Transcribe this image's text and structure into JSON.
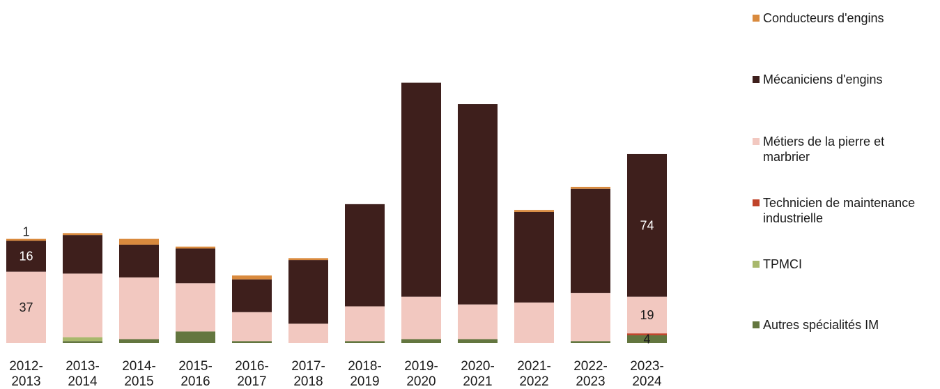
{
  "chart_data": {
    "type": "bar",
    "stacked": true,
    "title": "",
    "xlabel": "",
    "ylabel": "",
    "ylim": [
      0,
      175
    ],
    "grid": false,
    "legend_position": "right",
    "categories": [
      [
        "2012-",
        "2013"
      ],
      [
        "2013-",
        "2014"
      ],
      [
        "2014-",
        "2015"
      ],
      [
        "2015-",
        "2016"
      ],
      [
        "2016-",
        "2017"
      ],
      [
        "2017-",
        "2018"
      ],
      [
        "2018-",
        "2019"
      ],
      [
        "2019-",
        "2020"
      ],
      [
        "2020-",
        "2021"
      ],
      [
        "2021-",
        "2022"
      ],
      [
        "2022-",
        "2023"
      ],
      [
        "2023-",
        "2024"
      ]
    ],
    "series": [
      {
        "name": "Autres spécialités IM",
        "color": "#63763F",
        "values": [
          0,
          1,
          2,
          6,
          1,
          0,
          1,
          2,
          2,
          0,
          1,
          4
        ]
      },
      {
        "name": "TPMCI",
        "color": "#A8B86C",
        "values": [
          0,
          2,
          0,
          0,
          0,
          0,
          0,
          0,
          0,
          0,
          0,
          0
        ]
      },
      {
        "name": "Technicien de maintenance industrielle",
        "color": "#C0442A",
        "values": [
          0,
          0,
          0,
          0,
          0,
          0,
          0,
          0,
          0,
          0,
          0,
          1
        ]
      },
      {
        "name": "Métiers de la pierre et marbrier",
        "color": "#F2C8C0",
        "values": [
          37,
          33,
          32,
          25,
          15,
          10,
          18,
          22,
          18,
          21,
          25,
          19
        ]
      },
      {
        "name": "Mécaniciens d'engins",
        "color": "#3E1F1C",
        "values": [
          16,
          20,
          17,
          18,
          17,
          33,
          53,
          111,
          104,
          47,
          54,
          74
        ]
      },
      {
        "name": "Conducteurs d'engins",
        "color": "#D98A3E",
        "values": [
          1,
          1,
          3,
          1,
          2,
          1,
          0,
          0,
          0,
          1,
          1,
          0
        ]
      }
    ],
    "data_labels": [
      {
        "category_index": 0,
        "series": "Conducteurs d'engins",
        "text": "1"
      },
      {
        "category_index": 0,
        "series": "Mécaniciens d'engins",
        "text": "16"
      },
      {
        "category_index": 0,
        "series": "Métiers de la pierre et marbrier",
        "text": "37"
      },
      {
        "category_index": 11,
        "series": "Mécaniciens d'engins",
        "text": "74"
      },
      {
        "category_index": 11,
        "series": "Métiers de la pierre et marbrier",
        "text": "19"
      },
      {
        "category_index": 11,
        "series": "Autres spécialités IM",
        "text": "4"
      }
    ]
  },
  "legend": {
    "items": [
      {
        "label": "Conducteurs d'engins",
        "color": "#D98A3E"
      },
      {
        "label": "Mécaniciens d'engins",
        "color": "#3E1F1C"
      },
      {
        "label": "Métiers de la pierre et marbrier",
        "color": "#F2C8C0"
      },
      {
        "label": "Technicien de maintenance industrielle",
        "color": "#C0442A"
      },
      {
        "label": "TPMCI",
        "color": "#A8B86C"
      },
      {
        "label": "Autres spécialités IM",
        "color": "#63763F"
      }
    ]
  }
}
